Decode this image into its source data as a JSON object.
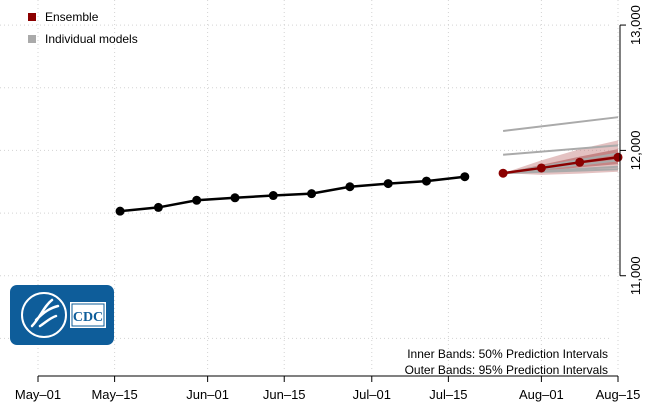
{
  "chart_data": {
    "type": "line",
    "x_ticks": [
      "May–01",
      "May–15",
      "Jun–01",
      "Jun–15",
      "Jul–01",
      "Jul–15",
      "Aug–01",
      "Aug–15"
    ],
    "x_range": [
      "2020-05-01",
      "2020-08-15"
    ],
    "y_ticks": [
      "11,000",
      "12,000",
      "13,000"
    ],
    "y_range": [
      10200,
      13200
    ],
    "grid": true,
    "y_axis_side": "right",
    "legend_position": "top-left",
    "legend": [
      {
        "label": "Ensemble",
        "color": "#8b0000"
      },
      {
        "label": "Individual models",
        "color": "#aaaaaa"
      }
    ],
    "series": [
      {
        "name": "",
        "color": "#000000",
        "x": [
          "2020-05-16",
          "2020-05-23",
          "2020-05-30",
          "2020-06-06",
          "2020-06-13",
          "2020-06-20",
          "2020-06-27",
          "2020-07-04",
          "2020-07-11",
          "2020-07-18"
        ],
        "y": [
          11515,
          11545,
          11602,
          11622,
          11640,
          11655,
          11710,
          11735,
          11755,
          11790
        ]
      },
      {
        "name": "Ensemble",
        "color": "#8b0000",
        "x": [
          "2020-07-25",
          "2020-08-01",
          "2020-08-08",
          "2020-08-15"
        ],
        "y": [
          11818,
          11860,
          11905,
          11945
        ],
        "inner_band": {
          "low": [
            11818,
            11835,
            11865,
            11890
          ],
          "high": [
            11818,
            11885,
            11950,
            12010
          ]
        },
        "outer_band": {
          "low": [
            11818,
            11805,
            11815,
            11830
          ],
          "high": [
            11818,
            11920,
            12010,
            12080
          ]
        }
      },
      {
        "name": "Individual models",
        "color": "#aaaaaa",
        "lines": [
          {
            "x": [
              "2020-07-25",
              "2020-08-15"
            ],
            "y": [
              12155,
              12265
            ]
          },
          {
            "x": [
              "2020-07-25",
              "2020-08-15"
            ],
            "y": [
              11965,
              12040
            ]
          },
          {
            "x": [
              "2020-07-25",
              "2020-08-15"
            ],
            "y": [
              11818,
              11975
            ]
          },
          {
            "x": [
              "2020-07-25",
              "2020-08-15"
            ],
            "y": [
              11818,
              11920
            ]
          },
          {
            "x": [
              "2020-07-25",
              "2020-08-15"
            ],
            "y": [
              11818,
              11870
            ]
          },
          {
            "x": [
              "2020-07-25",
              "2020-08-15"
            ],
            "y": [
              11818,
              11850
            ]
          }
        ]
      }
    ],
    "annotations": [
      "Inner Bands: 50% Prediction Intervals",
      "Outer Bands: 95% Prediction Intervals"
    ]
  },
  "logo": {
    "text": "CDC",
    "name": "cdc-logo"
  }
}
